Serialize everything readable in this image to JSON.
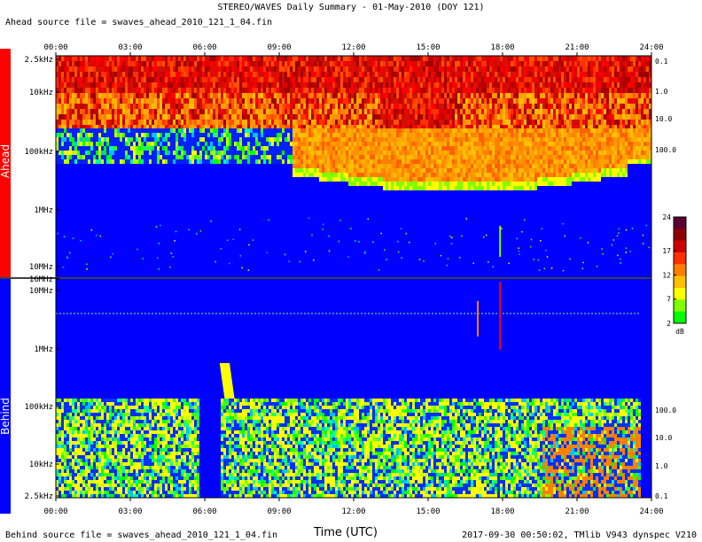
{
  "title": "STEREO/WAVES Daily Summary - 01-May-2010 (DOY 121)",
  "ahead_source": "Ahead source file = swaves_ahead_2010_121_1_04.fin",
  "behind_source": "Behind source file = swaves_ahead_2010_121_1_04.fin",
  "footer": "2017-09-30 00:50:02, TMlib V943 dynspec V210",
  "side_labels": {
    "ahead": "Ahead",
    "behind": "Behind"
  },
  "colors": {
    "ahead_bar": "#ff0000",
    "behind_bar": "#0000ff",
    "background": "#0000ff"
  },
  "chart_data": {
    "type": "heatmap",
    "xlabel": "Time (UTC)",
    "x_ticks": [
      "00:00",
      "03:00",
      "06:00",
      "09:00",
      "12:00",
      "15:00",
      "18:00",
      "21:00",
      "24:00"
    ],
    "x_range_hours": [
      0,
      24
    ],
    "colorbar": {
      "ticks": [
        "24",
        "17",
        "12",
        "7",
        "2"
      ],
      "unit": "dB",
      "range": [
        2,
        24
      ]
    },
    "panels": [
      {
        "name": "Ahead",
        "freq_ticks_left": [
          "2.5kHz",
          "10kHz",
          "100kHz",
          "1MHz",
          "10MHz"
        ],
        "freq_ticks_right": [
          "0.1",
          "1.0",
          "10.0",
          "100.0"
        ],
        "features": "Intense broadband emission below ~200 kHz all day; 2.5-10 kHz red/orange; orange-yellow band 100-200 kHz deepening 09:00-23:00"
      },
      {
        "name": "Behind",
        "freq_ticks_left": [
          "16MHz",
          "10MHz",
          "1MHz",
          "100kHz",
          "10kHz",
          "2.5kHz"
        ],
        "freq_ticks_right": [
          "100.0",
          "10.0",
          "1.0",
          "0.1"
        ],
        "features": "Green/yellow noise below ~150 kHz; data gap ~05:00-06:00; type III burst near 06:00; narrowband lines near 1.7 MHz"
      }
    ]
  }
}
